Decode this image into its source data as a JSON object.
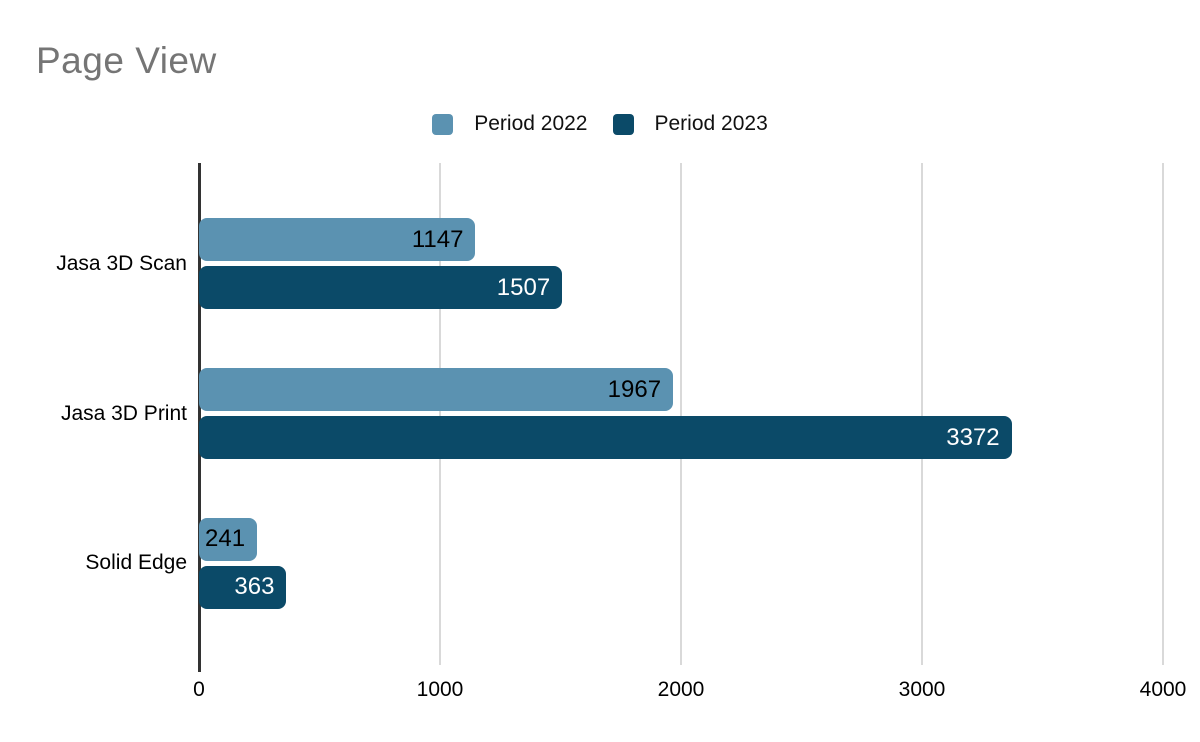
{
  "page_title": "Page View",
  "chart_data": {
    "type": "bar",
    "orientation": "horizontal",
    "title": "Page View",
    "title_color": "#757575",
    "categories": [
      "Jasa 3D Scan",
      "Jasa 3D Print",
      "Solid Edge"
    ],
    "series": [
      {
        "name": "Period 2022",
        "color": "#5B92B1",
        "value_label_color": "#000000",
        "values": [
          1147,
          1967,
          241
        ]
      },
      {
        "name": "Period 2023",
        "color": "#0B4A68",
        "value_label_color": "#FFFFFF",
        "values": [
          1507,
          3372,
          363
        ]
      }
    ],
    "x_ticks": [
      0,
      1000,
      2000,
      3000,
      4000
    ],
    "xlim": [
      0,
      4000
    ],
    "grid": true,
    "gridline_color": "#D9D9D9",
    "axis_color": "#333333",
    "legend_position": "top-center",
    "background_color": "#FFFFFF"
  }
}
